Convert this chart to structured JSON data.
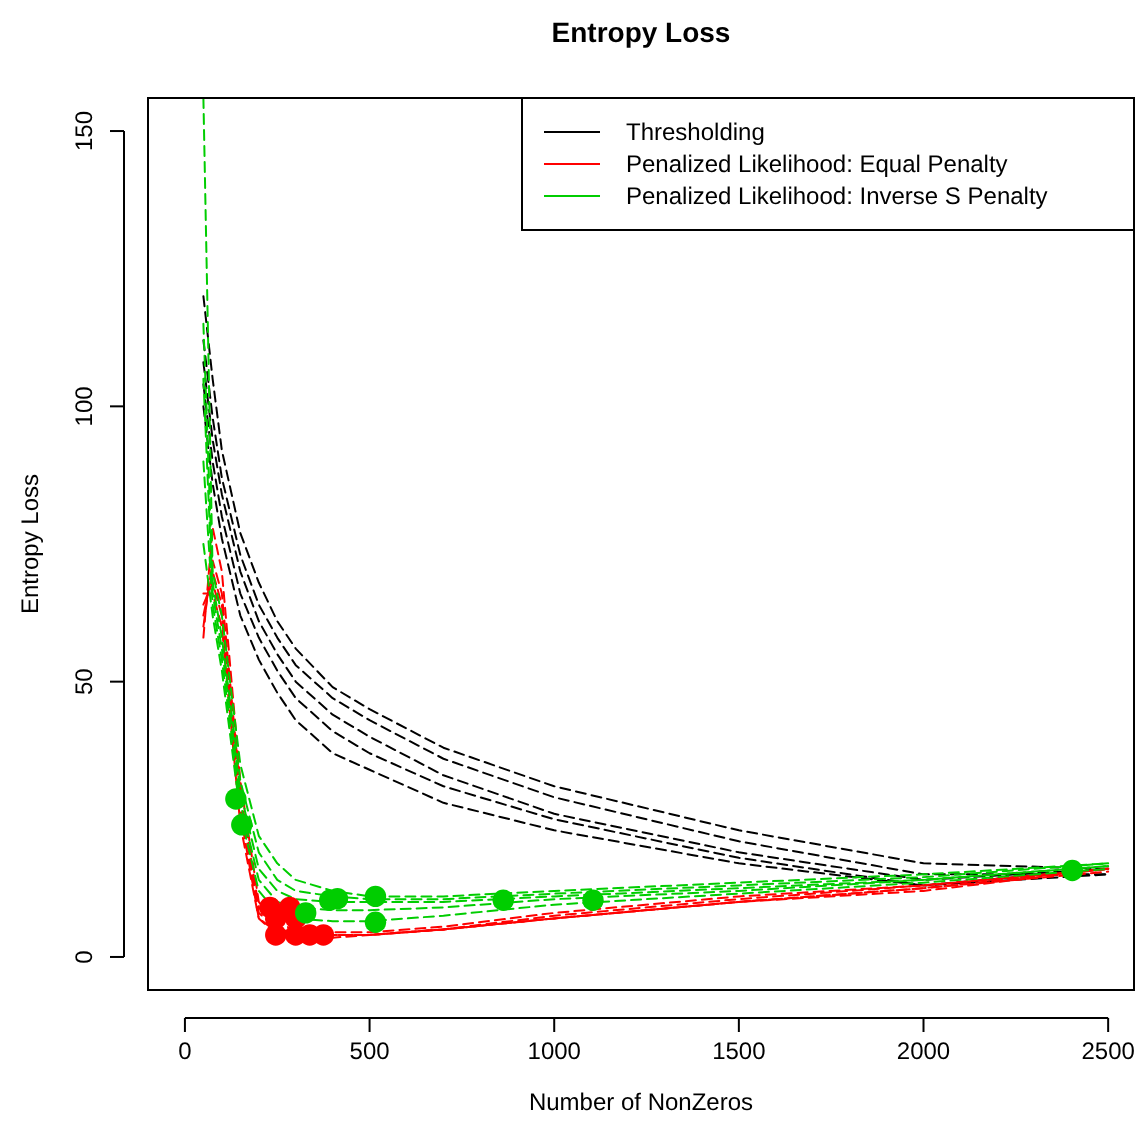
{
  "chart_data": {
    "type": "line",
    "title": "Entropy Loss",
    "xlabel": "Number of NonZeros",
    "ylabel": "Entropy Loss",
    "x": [
      50,
      75,
      100,
      150,
      200,
      250,
      300,
      400,
      500,
      700,
      1000,
      1500,
      2000,
      2500
    ],
    "xlim": [
      -100,
      2570
    ],
    "ylim": [
      -6,
      156
    ],
    "xticks": [
      0,
      500,
      1000,
      1500,
      2000,
      2500
    ],
    "yticks": [
      0,
      50,
      100,
      150
    ],
    "grid": false,
    "legend": "top right",
    "line_style": "dashed",
    "series": [
      {
        "name": "Thresholding",
        "color": "#000000",
        "values": [
          120,
          105,
          92,
          77,
          68,
          61,
          56,
          49,
          45,
          38,
          31,
          23,
          17,
          16
        ]
      },
      {
        "color": "#000000",
        "values": [
          112,
          98,
          87,
          73,
          64,
          58,
          53,
          47,
          43,
          36,
          29,
          21,
          15,
          15
        ]
      },
      {
        "color": "#000000",
        "values": [
          108,
          94,
          84,
          70,
          61,
          55,
          50,
          44,
          40,
          33,
          26,
          19,
          14,
          16
        ]
      },
      {
        "color": "#000000",
        "values": [
          104,
          90,
          80,
          66,
          58,
          52,
          47,
          41,
          37,
          31,
          25,
          18,
          13,
          15
        ]
      },
      {
        "color": "#000000",
        "values": [
          100,
          86,
          76,
          62,
          54,
          48,
          43,
          37,
          34,
          28,
          23,
          17,
          13,
          16
        ]
      },
      {
        "name": "Penalized Likelihood: Equal Penalty",
        "color": "#ff0000",
        "values": [
          58,
          78,
          70,
          32,
          10,
          6,
          5,
          4.5,
          4.5,
          5.5,
          8,
          11,
          13,
          16
        ]
      },
      {
        "color": "#ff0000",
        "values": [
          60,
          72,
          66,
          30,
          9,
          5,
          4.5,
          4,
          4,
          5,
          7.5,
          10.5,
          13,
          16
        ]
      },
      {
        "color": "#ff0000",
        "values": [
          62,
          70,
          64,
          28,
          8,
          5,
          4,
          4,
          4,
          5,
          7,
          10,
          12.5,
          15.5
        ]
      },
      {
        "color": "#ff0000",
        "values": [
          64,
          68,
          62,
          26,
          7,
          4.5,
          4,
          4,
          4,
          5,
          7,
          10,
          12.5,
          16
        ]
      },
      {
        "color": "#ff0000",
        "values": [
          66,
          66,
          60,
          24,
          7,
          4,
          4,
          3.5,
          4,
          5,
          7,
          10,
          12,
          16
        ]
      },
      {
        "name": "Penalized Likelihood: Inverse S Penalty",
        "color": "#00cd00",
        "values": [
          156,
          70,
          62,
          35,
          22,
          17,
          14,
          12,
          11,
          11,
          12,
          13.5,
          15,
          17
        ]
      },
      {
        "color": "#00cd00",
        "values": [
          115,
          68,
          58,
          32,
          19,
          14,
          12,
          11,
          10.5,
          10.5,
          11.5,
          13,
          14.5,
          17
        ]
      },
      {
        "color": "#00cd00",
        "values": [
          105,
          66,
          56,
          30,
          16,
          12,
          10.5,
          10,
          10,
          10,
          11,
          12.5,
          14,
          16.5
        ]
      },
      {
        "color": "#00cd00",
        "values": [
          90,
          64,
          54,
          28,
          14,
          10,
          9,
          8.5,
          8.5,
          9,
          10.5,
          12,
          14,
          16.5
        ]
      },
      {
        "color": "#00cd00",
        "values": [
          75,
          62,
          52,
          26,
          12,
          8,
          7,
          6.5,
          6.5,
          7.5,
          9.5,
          11.5,
          13.5,
          16
        ]
      },
      {
        "type": "scatter",
        "marker": "circle",
        "color": "#ff0000",
        "x": [
          230,
          246,
          246,
          284,
          300,
          300,
          338,
          375
        ],
        "values": [
          9,
          7,
          4,
          9,
          7,
          4,
          4,
          4
        ]
      },
      {
        "type": "scatter",
        "marker": "circle",
        "color": "#00cd00",
        "x": [
          138,
          154,
          327,
          392,
          413,
          516,
          516,
          862,
          1105,
          2403
        ],
        "values": [
          28.7,
          24,
          8,
          10.3,
          10.6,
          11,
          6.3,
          10.3,
          10.3,
          15.7
        ]
      }
    ]
  }
}
